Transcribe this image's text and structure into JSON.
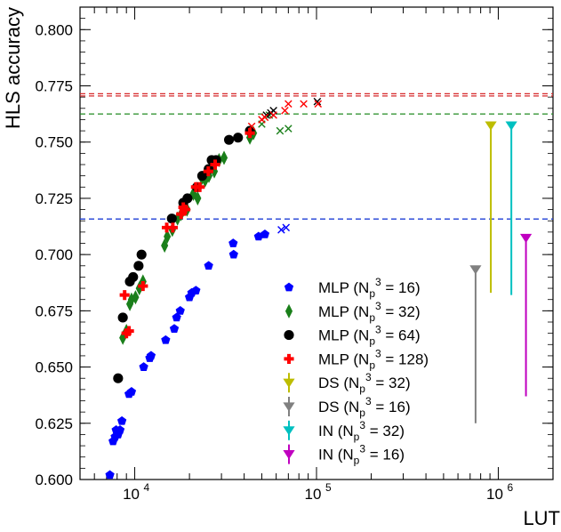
{
  "chart_data": {
    "type": "scatter",
    "title": "",
    "xlabel": "LUT",
    "ylabel": "HLS accuracy",
    "xscale": "log",
    "xlim": [
      5000,
      2000000
    ],
    "ylim": [
      0.6,
      0.81
    ],
    "y_ticks": [
      "0.600",
      "0.625",
      "0.650",
      "0.675",
      "0.700",
      "0.725",
      "0.750",
      "0.775",
      "0.800"
    ],
    "x_ticks": [
      {
        "value": 10000,
        "base": "10",
        "exp": "4"
      },
      {
        "value": 100000,
        "base": "10",
        "exp": "5"
      },
      {
        "value": 1000000,
        "base": "10",
        "exp": "6"
      }
    ],
    "hlines": [
      {
        "y": 0.7715,
        "color": "#d62728"
      },
      {
        "y": 0.7705,
        "color": "#d62728"
      },
      {
        "y": 0.7625,
        "color": "#228b22"
      },
      {
        "y": 0.7158,
        "color": "#1f3fd6"
      }
    ],
    "legend_position": "lower-right",
    "series": [
      {
        "name": "MLP (Np3 = 16)",
        "label_main": "MLP (N",
        "sub": "p",
        "sup": "3",
        "label_tail": " = 16)",
        "color": "#0000ff",
        "marker": "pentagon",
        "points": [
          [
            7300,
            0.602
          ],
          [
            7600,
            0.617
          ],
          [
            7800,
            0.619
          ],
          [
            7900,
            0.622
          ],
          [
            8100,
            0.62
          ],
          [
            8300,
            0.622
          ],
          [
            8500,
            0.626
          ],
          [
            9300,
            0.638
          ],
          [
            9600,
            0.639
          ],
          [
            11200,
            0.65
          ],
          [
            12100,
            0.654
          ],
          [
            12300,
            0.655
          ],
          [
            14800,
            0.662
          ],
          [
            16500,
            0.667
          ],
          [
            17000,
            0.672
          ],
          [
            17800,
            0.675
          ],
          [
            20000,
            0.681
          ],
          [
            20600,
            0.683
          ],
          [
            21700,
            0.684
          ],
          [
            25500,
            0.695
          ],
          [
            35000,
            0.7
          ],
          [
            34800,
            0.705
          ],
          [
            48000,
            0.708
          ],
          [
            52000,
            0.709
          ]
        ]
      },
      {
        "name": "MLP (Np3 = 16) int",
        "color": "#0000ff",
        "marker": "x",
        "legend": false,
        "points": [
          [
            64000,
            0.711
          ],
          [
            68000,
            0.712
          ]
        ]
      },
      {
        "name": "MLP (Np3 = 32)",
        "label_main": "MLP (N",
        "sub": "p",
        "sup": "3",
        "label_tail": " = 32)",
        "color": "#1a7f1a",
        "marker": "diamond",
        "points": [
          [
            8600,
            0.663
          ],
          [
            9000,
            0.666
          ],
          [
            9400,
            0.678
          ],
          [
            9600,
            0.68
          ],
          [
            10100,
            0.681
          ],
          [
            10600,
            0.685
          ],
          [
            11100,
            0.688
          ],
          [
            14600,
            0.704
          ],
          [
            15100,
            0.708
          ],
          [
            16100,
            0.711
          ],
          [
            17200,
            0.716
          ],
          [
            18000,
            0.718
          ],
          [
            19400,
            0.72
          ],
          [
            21000,
            0.727
          ],
          [
            22200,
            0.725
          ],
          [
            23400,
            0.734
          ],
          [
            24400,
            0.733
          ],
          [
            25600,
            0.735
          ],
          [
            27400,
            0.737
          ],
          [
            29100,
            0.742
          ],
          [
            31000,
            0.743
          ],
          [
            43000,
            0.752
          ],
          [
            45000,
            0.754
          ]
        ]
      },
      {
        "name": "MLP (Np3 = 32) int",
        "color": "#1a7f1a",
        "marker": "x",
        "legend": false,
        "points": [
          [
            50000,
            0.758
          ],
          [
            55000,
            0.762
          ],
          [
            63000,
            0.755
          ],
          [
            70000,
            0.756
          ]
        ]
      },
      {
        "name": "MLP (Np3 = 64)",
        "label_main": "MLP (N",
        "sub": "p",
        "sup": "3",
        "label_tail": " = 64)",
        "color": "#000000",
        "marker": "circle",
        "points": [
          [
            8100,
            0.645
          ],
          [
            8600,
            0.672
          ],
          [
            9400,
            0.688
          ],
          [
            9800,
            0.69
          ],
          [
            10500,
            0.695
          ],
          [
            10900,
            0.7
          ],
          [
            16000,
            0.716
          ],
          [
            18500,
            0.723
          ],
          [
            19500,
            0.725
          ],
          [
            22000,
            0.73
          ],
          [
            23500,
            0.735
          ],
          [
            25500,
            0.738
          ],
          [
            26500,
            0.742
          ],
          [
            28000,
            0.742
          ],
          [
            33000,
            0.751
          ],
          [
            37000,
            0.752
          ],
          [
            43000,
            0.755
          ]
        ]
      },
      {
        "name": "MLP (Np3 = 64) int",
        "color": "#000000",
        "marker": "x",
        "legend": false,
        "points": [
          [
            53000,
            0.762
          ],
          [
            56000,
            0.763
          ],
          [
            58000,
            0.764
          ],
          [
            101000,
            0.768
          ]
        ]
      },
      {
        "name": "MLP (Np3 = 128)",
        "label_main": "MLP (N",
        "sub": "p",
        "sup": "3",
        "label_tail": " = 128)",
        "color": "#ff0000",
        "marker": "cross",
        "points": [
          [
            8800,
            0.682
          ],
          [
            9000,
            0.665
          ],
          [
            9300,
            0.666
          ],
          [
            11100,
            0.686
          ],
          [
            15000,
            0.712
          ],
          [
            16200,
            0.712
          ],
          [
            18000,
            0.718
          ],
          [
            18500,
            0.721
          ],
          [
            19000,
            0.72
          ],
          [
            21700,
            0.73
          ],
          [
            22800,
            0.73
          ],
          [
            25400,
            0.737
          ],
          [
            27700,
            0.74
          ],
          [
            43000,
            0.754
          ]
        ]
      },
      {
        "name": "MLP (Np3 = 128) int",
        "color": "#ff0000",
        "marker": "x",
        "legend": false,
        "points": [
          [
            44000,
            0.757
          ],
          [
            50000,
            0.76
          ],
          [
            52000,
            0.761
          ],
          [
            58000,
            0.762
          ],
          [
            67000,
            0.764
          ],
          [
            70000,
            0.767
          ],
          [
            85000,
            0.767
          ],
          [
            102000,
            0.767
          ]
        ]
      },
      {
        "name": "DS (Np3 = 32)",
        "label_main": "DS (N",
        "sub": "p",
        "sup": "3",
        "label_tail": " = 32)",
        "color": "#bdbd00",
        "marker": "tri-down",
        "points": [
          [
            910000,
            0.757
          ]
        ],
        "line_to": 0.683
      },
      {
        "name": "DS (Np3 = 16)",
        "label_main": "DS (N",
        "sub": "p",
        "sup": "3",
        "label_tail": " = 16)",
        "color": "#808080",
        "marker": "tri-down",
        "points": [
          [
            750000,
            0.693
          ]
        ],
        "line_to": 0.625
      },
      {
        "name": "IN (Np3 = 32)",
        "label_main": "IN (N",
        "sub": "p",
        "sup": "3",
        "label_tail": " = 32)",
        "color": "#00c0c0",
        "marker": "tri-down",
        "points": [
          [
            1180000,
            0.757
          ]
        ],
        "line_to": 0.682
      },
      {
        "name": "IN (Np3 = 16)",
        "label_main": "IN (N",
        "sub": "p",
        "sup": "3",
        "label_tail": " = 16)",
        "color": "#c000c0",
        "marker": "tri-down",
        "points": [
          [
            1420000,
            0.707
          ]
        ],
        "line_to": 0.637
      }
    ]
  }
}
